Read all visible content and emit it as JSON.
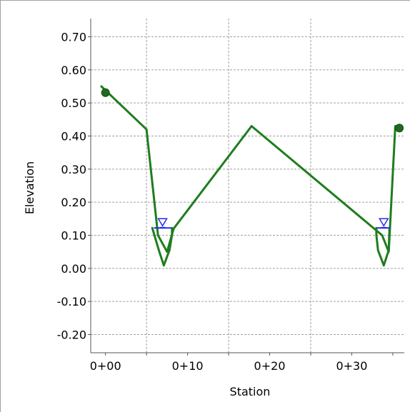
{
  "chart_data": {
    "type": "line",
    "title": "",
    "xlabel": "Station",
    "ylabel": "Elevation",
    "xlim": [
      -1.8,
      36.4
    ],
    "ylim": [
      -0.255,
      0.755
    ],
    "x_ticks": [
      {
        "value": 0,
        "label": "0+00"
      },
      {
        "value": 10,
        "label": "0+10"
      },
      {
        "value": 20,
        "label": "0+20"
      },
      {
        "value": 30,
        "label": "0+30"
      }
    ],
    "y_ticks": [
      {
        "value": 0.7,
        "label": "0.70"
      },
      {
        "value": 0.6,
        "label": "0.60"
      },
      {
        "value": 0.5,
        "label": "0.50"
      },
      {
        "value": 0.4,
        "label": "0.40"
      },
      {
        "value": 0.3,
        "label": "0.30"
      },
      {
        "value": 0.2,
        "label": "0.20"
      },
      {
        "value": 0.1,
        "label": "0.10"
      },
      {
        "value": 0.0,
        "label": "0.00"
      },
      {
        "value": -0.1,
        "label": "-0.10"
      },
      {
        "value": -0.2,
        "label": "-0.20"
      }
    ],
    "vertical_grid_x": [
      5,
      15,
      25
    ],
    "grid": true,
    "legend": "none",
    "series": [
      {
        "x": [
          -0.5,
          5.0,
          6.4,
          7.5,
          8.3,
          17.8,
          33.7,
          34.5,
          35.3
        ],
        "y": [
          0.55,
          0.42,
          0.1,
          0.05,
          0.12,
          0.43,
          0.1,
          0.05,
          0.43
        ],
        "color": "#1e7d1e"
      },
      {
        "x": [
          5.7,
          6.5,
          7.1,
          7.8,
          8.1,
          8.1
        ],
        "y": [
          0.122,
          0.055,
          0.009,
          0.055,
          0.101,
          0.122
        ],
        "color": "#1e7d1e"
      },
      {
        "x": [
          33.0,
          33.0,
          33.2,
          33.9,
          34.5,
          34.6
        ],
        "y": [
          0.122,
          0.101,
          0.055,
          0.009,
          0.055,
          0.122
        ],
        "color": "#1e7d1e"
      }
    ],
    "endpoint_markers": [
      {
        "x": 0.0,
        "y": 0.531
      },
      {
        "x": 35.8,
        "y": 0.424
      }
    ],
    "water_surfaces": [
      {
        "x_start": 5.9,
        "x_end": 8.0,
        "y": 0.122
      },
      {
        "x_start": 33.1,
        "x_end": 34.7,
        "y": 0.122
      }
    ],
    "colors": {
      "terrain_line": "#1e7d1e",
      "water_surface": "#2a2af2",
      "gridline": "#a0a0a0",
      "axis": "#555555"
    }
  }
}
